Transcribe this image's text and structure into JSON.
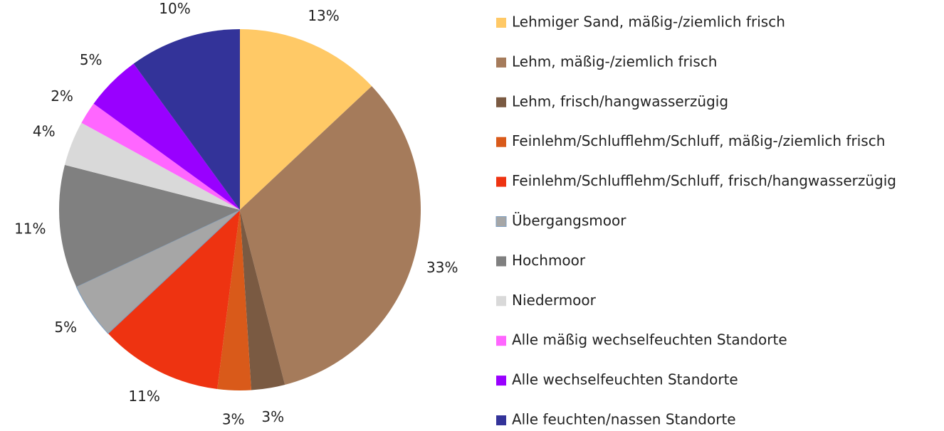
{
  "chart_data": {
    "type": "pie",
    "categories": [
      "Lehmiger Sand, mäßig-/ziemlich frisch",
      "Lehm, mäßig-/ziemlich frisch",
      "Lehm, frisch/hangwasserzügig",
      "Feinlehm/Schlufflehm/Schluff, mäßig-/ziemlich frisch",
      "Feinlehm/Schlufflehm/Schluff, frisch/hangwasserzügig",
      "Übergangsmoor",
      "Hochmoor",
      "Niedermoor",
      "Alle mäßig wechselfeuchten Standorte",
      "Alle wechselfeuchten Standorte",
      "Alle feuchten/nassen Standorte"
    ],
    "values": [
      13,
      33,
      3,
      3,
      11,
      5,
      11,
      4,
      2,
      5,
      10
    ],
    "value_labels": [
      "13%",
      "33%",
      "3%",
      "3%",
      "11%",
      "5%",
      "11%",
      "4%",
      "2%",
      "5%",
      "10%"
    ],
    "colors": [
      "#FFC966",
      "#A57B5B",
      "#7A5A42",
      "#D95A1A",
      "#EE3311",
      "#A6A6A6",
      "#808080",
      "#D9D9D9",
      "#FF66FF",
      "#9900FF",
      "#333399"
    ],
    "legend": "right"
  }
}
